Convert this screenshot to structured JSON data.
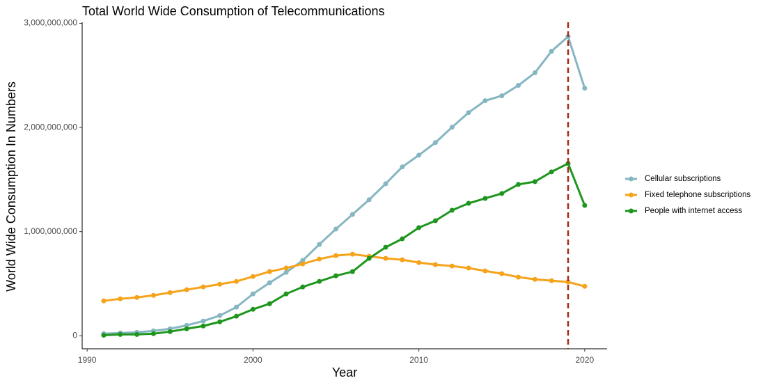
{
  "chart_data": {
    "type": "line",
    "title": "Total World Wide Consumption of Telecommunications",
    "x_label": "Year",
    "y_label": "World Wide Consumption In Numbers",
    "x": [
      1991,
      1992,
      1993,
      1994,
      1995,
      1996,
      1997,
      1998,
      1999,
      2000,
      2001,
      2002,
      2003,
      2004,
      2005,
      2006,
      2007,
      2008,
      2009,
      2010,
      2011,
      2012,
      2013,
      2014,
      2015,
      2016,
      2017,
      2018,
      2019,
      2020
    ],
    "series": [
      {
        "name": "Cellular subscriptions",
        "color": "#85b6c1",
        "values": [
          20000000,
          27000000,
          33000000,
          47000000,
          67000000,
          100000000,
          141000000,
          194000000,
          275000000,
          402000000,
          509000000,
          609000000,
          723000000,
          877000000,
          1025000000,
          1165000000,
          1306000000,
          1460000000,
          1621000000,
          1734000000,
          1855000000,
          2002000000,
          2143000000,
          2257000000,
          2304000000,
          2404000000,
          2525000000,
          2732000000,
          2873000000,
          2377000000
        ]
      },
      {
        "name": "Fixed telephone subscriptions",
        "color": "#f5a31a",
        "values": [
          335000000,
          355000000,
          368000000,
          388000000,
          415000000,
          442000000,
          469000000,
          495000000,
          522000000,
          569000000,
          616000000,
          650000000,
          690000000,
          737000000,
          770000000,
          783000000,
          763000000,
          743000000,
          730000000,
          703000000,
          683000000,
          670000000,
          650000000,
          623000000,
          596000000,
          563000000,
          542000000,
          529000000,
          516000000,
          475000000
        ]
      },
      {
        "name": "People with internet access",
        "color": "#1e961e",
        "values": [
          5000000,
          13000000,
          13000000,
          20000000,
          40000000,
          67000000,
          94000000,
          134000000,
          188000000,
          254000000,
          308000000,
          402000000,
          469000000,
          522000000,
          576000000,
          616000000,
          743000000,
          850000000,
          931000000,
          1038000000,
          1105000000,
          1205000000,
          1272000000,
          1319000000,
          1366000000,
          1453000000,
          1480000000,
          1574000000,
          1654000000,
          1252000000
        ]
      }
    ],
    "vline": 2019,
    "vline_color": "#a52a1a",
    "xlim": [
      1989.7,
      2021.35
    ],
    "xticks": [
      1990,
      2000,
      2010,
      2020
    ],
    "ylim": [
      -125000000,
      3010000000
    ],
    "yticks": [
      {
        "value": 0,
        "label": "0"
      },
      {
        "value": 1000000000,
        "label": "1,000,000,000"
      },
      {
        "value": 2000000000,
        "label": "2,000,000,000"
      },
      {
        "value": 3000000000,
        "label": "3,000,000,000"
      }
    ],
    "grid": false,
    "legend": "right"
  }
}
